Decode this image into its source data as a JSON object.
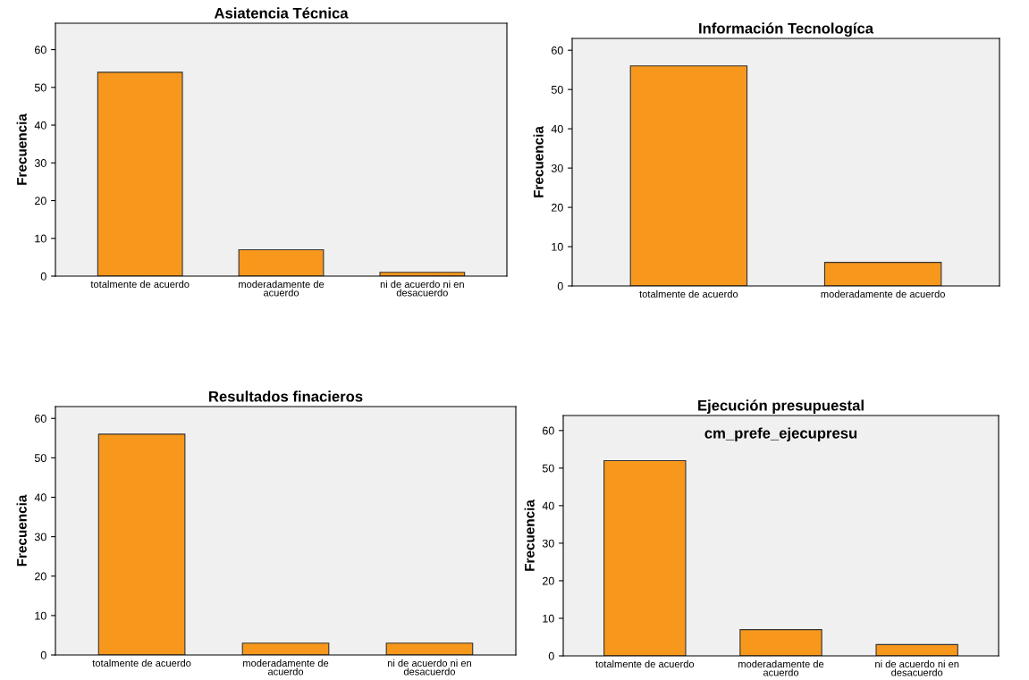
{
  "chart_data": [
    {
      "type": "bar",
      "title": "Asiatencia Técnica",
      "ylabel": "Frecuencia",
      "categories": [
        "totalmente de acuerdo",
        "moderadamente de\nacuerdo",
        "ni de acuerdo ni en\ndesacuerdo"
      ],
      "values": [
        54,
        7,
        1
      ],
      "color": "#f7981d",
      "ylim": [
        0,
        67
      ],
      "yticks": [
        0,
        10,
        20,
        30,
        40,
        50,
        60
      ],
      "grid": false
    },
    {
      "type": "bar",
      "title": "Información Tecnologíca",
      "ylabel": "Frecuencia",
      "categories": [
        "totalmente de acuerdo",
        "moderadamente de acuerdo"
      ],
      "values": [
        56,
        6
      ],
      "color": "#f7981d",
      "ylim": [
        0,
        63
      ],
      "yticks": [
        0,
        10,
        20,
        30,
        40,
        50,
        60
      ],
      "grid": false
    },
    {
      "type": "bar",
      "title": "Resultados finacieros",
      "ylabel": "Frecuencia",
      "categories": [
        "totalmente de acuerdo",
        "moderadamente de\nacuerdo",
        "ni de acuerdo ni en\ndesacuerdo"
      ],
      "values": [
        56,
        3,
        3
      ],
      "color": "#f7981d",
      "ylim": [
        0,
        63
      ],
      "yticks": [
        0,
        10,
        20,
        30,
        40,
        50,
        60
      ],
      "grid": false
    },
    {
      "type": "bar",
      "title": "Ejecución presupuestal",
      "subtitle": "cm_prefe_ejecupresu",
      "ylabel": "Frecuencia",
      "categories": [
        "totalmente de acuerdo",
        "moderadamente de\nacuerdo",
        "ni de acuerdo ni en\ndesacuerdo"
      ],
      "values": [
        52,
        7,
        3
      ],
      "color": "#f7981d",
      "ylim": [
        0,
        64
      ],
      "yticks": [
        0,
        10,
        20,
        30,
        40,
        50,
        60
      ],
      "grid": false
    }
  ]
}
